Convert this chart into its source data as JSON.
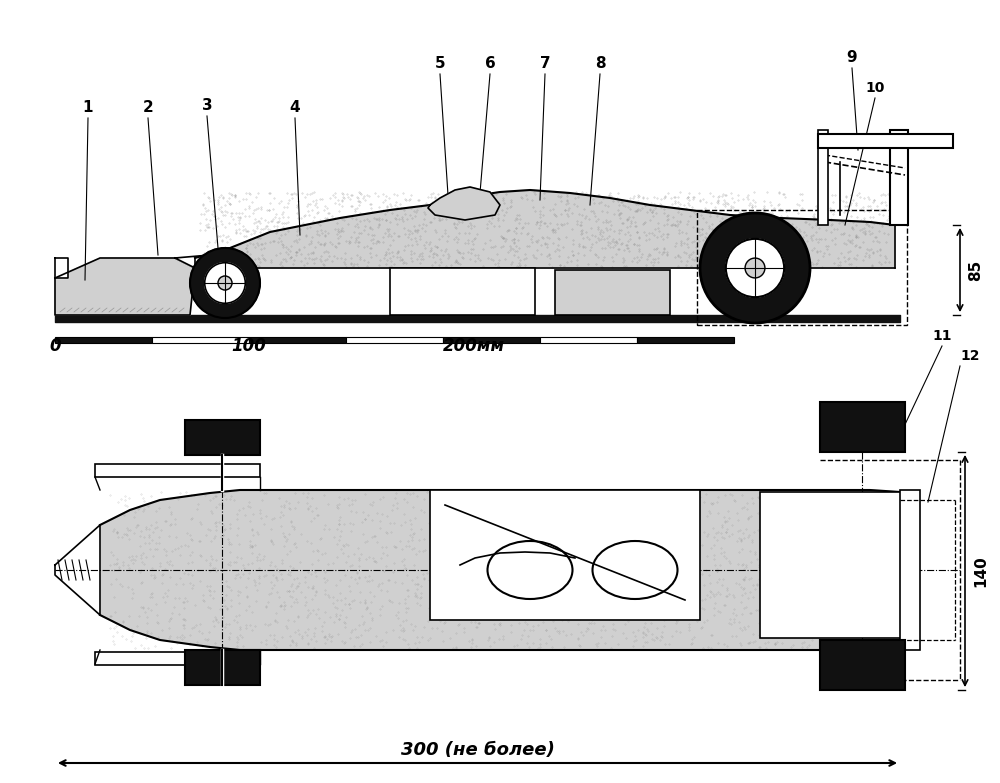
{
  "bg_color": "#ffffff",
  "lc": "#000000",
  "df": "#111111",
  "lg": "#d0d0d0",
  "mg": "#888888",
  "scale_0": "0",
  "scale_100": "100",
  "scale_200": "200мм",
  "dim_85": "85",
  "dim_140": "140",
  "dim_300": "300 (не более)",
  "labels": [
    "1",
    "2",
    "3",
    "4",
    "5",
    "6",
    "7",
    "8",
    "9",
    "10",
    "11",
    "12"
  ]
}
